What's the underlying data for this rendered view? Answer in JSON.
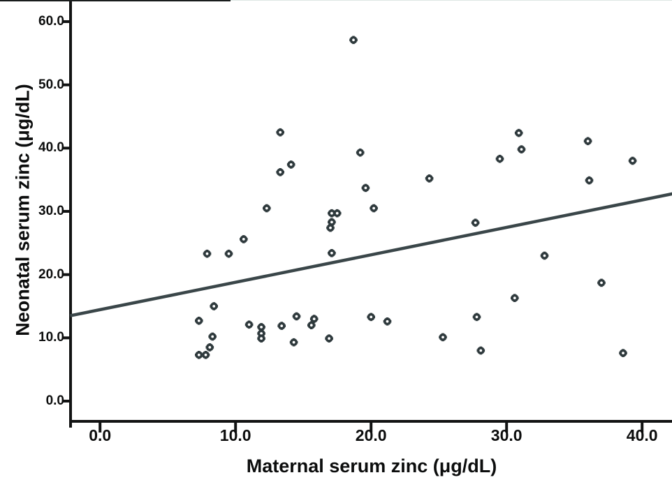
{
  "figure": {
    "background": "#ffffff",
    "text_color": "#0c0d0d",
    "axis_color": "#121313"
  },
  "chart_data": {
    "type": "scatter",
    "title": "",
    "xlabel": "Maternal serum zinc (μg/dL)",
    "ylabel": "Neonatal serum zinc (μg/dL)",
    "x_tick_labels": [
      "0.0",
      "10.0",
      "20.0",
      "30.0",
      "40.0"
    ],
    "y_tick_labels": [
      "0.0",
      "10.0",
      "20.0",
      "30.0",
      "40.0",
      "50.0",
      "60.0"
    ],
    "xlim": [
      -2.2,
      42.3
    ],
    "ylim": [
      -3.2,
      63.4
    ],
    "grid": false,
    "legend": "none",
    "marker": "open-center-eight-tooth-asterisk",
    "marker_color": "#2e393c",
    "fit_line_color": "#3a4649",
    "points": [
      [
        7.9,
        23.3
      ],
      [
        9.5,
        23.3
      ],
      [
        10.6,
        25.6
      ],
      [
        8.4,
        15.0
      ],
      [
        7.3,
        12.7
      ],
      [
        8.3,
        10.2
      ],
      [
        8.1,
        8.5
      ],
      [
        7.3,
        7.3
      ],
      [
        7.8,
        7.3
      ],
      [
        11.0,
        12.1
      ],
      [
        11.9,
        11.7
      ],
      [
        11.9,
        10.7
      ],
      [
        11.9,
        9.9
      ],
      [
        13.4,
        11.9
      ],
      [
        14.5,
        13.4
      ],
      [
        14.3,
        9.3
      ],
      [
        15.8,
        13.0
      ],
      [
        15.6,
        12.0
      ],
      [
        16.9,
        9.9
      ],
      [
        12.3,
        30.5
      ],
      [
        13.3,
        42.5
      ],
      [
        13.3,
        36.2
      ],
      [
        14.1,
        37.4
      ],
      [
        17.1,
        29.7
      ],
      [
        17.5,
        29.7
      ],
      [
        17.1,
        28.3
      ],
      [
        17.0,
        27.4
      ],
      [
        17.1,
        23.4
      ],
      [
        18.7,
        57.1
      ],
      [
        19.2,
        39.3
      ],
      [
        19.6,
        33.7
      ],
      [
        20.2,
        30.5
      ],
      [
        20.0,
        13.3
      ],
      [
        21.2,
        12.6
      ],
      [
        24.3,
        35.2
      ],
      [
        25.3,
        10.1
      ],
      [
        27.7,
        28.2
      ],
      [
        27.8,
        13.3
      ],
      [
        28.1,
        8.0
      ],
      [
        29.5,
        38.3
      ],
      [
        30.6,
        16.3
      ],
      [
        30.9,
        42.4
      ],
      [
        31.1,
        39.8
      ],
      [
        32.8,
        23.0
      ],
      [
        36.0,
        41.1
      ],
      [
        36.1,
        34.9
      ],
      [
        37.0,
        18.7
      ],
      [
        38.6,
        7.6
      ],
      [
        39.3,
        38.0
      ]
    ],
    "fit_line": {
      "x1": -2.2,
      "y1": 13.5,
      "x2": 42.3,
      "y2": 32.8
    }
  }
}
